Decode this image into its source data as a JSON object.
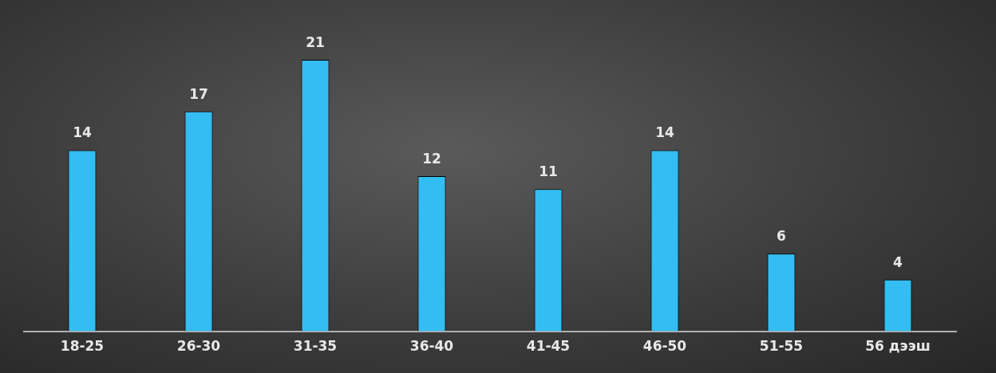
{
  "chart_data": {
    "type": "bar",
    "categories": [
      "18-25",
      "26-30",
      "31-35",
      "36-40",
      "41-45",
      "46-50",
      "51-55",
      "56 дээш"
    ],
    "values": [
      14,
      17,
      21,
      12,
      11,
      14,
      6,
      4
    ],
    "color": "#33bdf2",
    "data_labels": true,
    "grid": false,
    "legend": false
  }
}
